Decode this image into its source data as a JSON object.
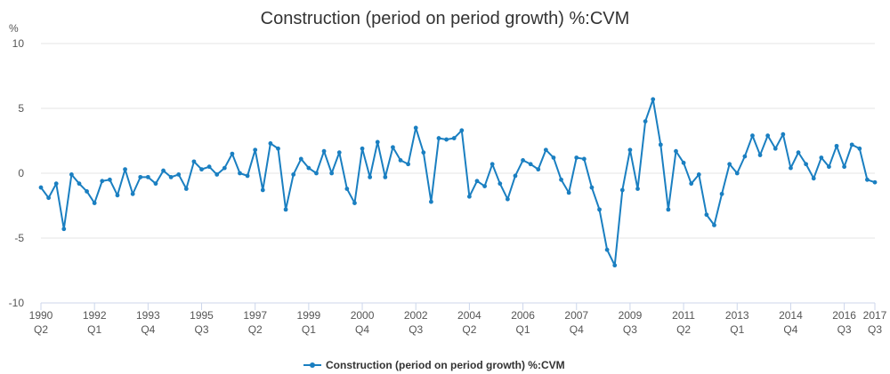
{
  "chart_data": {
    "type": "line",
    "title": "Construction (period on period growth) %:CVM",
    "ylabel": "%",
    "ylim": [
      -10,
      10
    ],
    "yticks": [
      10,
      5,
      0,
      -5,
      -10
    ],
    "grid": true,
    "legend_position": "bottom-center",
    "colors": {
      "series": "#1a7fc1"
    },
    "xtick_labels": [
      {
        "index": 0,
        "year": "1990",
        "quarter": "Q2"
      },
      {
        "index": 7,
        "year": "1992",
        "quarter": "Q1"
      },
      {
        "index": 14,
        "year": "1993",
        "quarter": "Q4"
      },
      {
        "index": 21,
        "year": "1995",
        "quarter": "Q3"
      },
      {
        "index": 28,
        "year": "1997",
        "quarter": "Q2"
      },
      {
        "index": 35,
        "year": "1999",
        "quarter": "Q1"
      },
      {
        "index": 42,
        "year": "2000",
        "quarter": "Q4"
      },
      {
        "index": 49,
        "year": "2002",
        "quarter": "Q3"
      },
      {
        "index": 56,
        "year": "2004",
        "quarter": "Q2"
      },
      {
        "index": 63,
        "year": "2006",
        "quarter": "Q1"
      },
      {
        "index": 70,
        "year": "2007",
        "quarter": "Q4"
      },
      {
        "index": 77,
        "year": "2009",
        "quarter": "Q3"
      },
      {
        "index": 84,
        "year": "2011",
        "quarter": "Q2"
      },
      {
        "index": 91,
        "year": "2013",
        "quarter": "Q1"
      },
      {
        "index": 98,
        "year": "2014",
        "quarter": "Q4"
      },
      {
        "index": 105,
        "year": "2016",
        "quarter": "Q3"
      },
      {
        "index": 109,
        "year": "2017",
        "quarter": "Q3"
      }
    ],
    "series": [
      {
        "name": "Construction (period on period growth) %:CVM",
        "start": "1990 Q2",
        "values": [
          -1.1,
          -1.9,
          -0.8,
          -4.3,
          -0.1,
          -0.8,
          -1.4,
          -2.3,
          -0.6,
          -0.5,
          -1.7,
          0.3,
          -1.6,
          -0.3,
          -0.3,
          -0.8,
          0.2,
          -0.3,
          -0.1,
          -1.2,
          0.9,
          0.3,
          0.5,
          -0.1,
          0.4,
          1.5,
          0.0,
          -0.2,
          1.8,
          -1.3,
          2.3,
          1.9,
          -2.8,
          -0.1,
          1.1,
          0.4,
          0.0,
          1.7,
          0.0,
          1.6,
          -1.2,
          -2.3,
          1.9,
          -0.3,
          2.4,
          -0.3,
          2.0,
          1.0,
          0.7,
          3.5,
          1.6,
          -2.2,
          2.7,
          2.6,
          2.7,
          3.3,
          -1.8,
          -0.6,
          -1.0,
          0.7,
          -0.8,
          -2.0,
          -0.2,
          1.0,
          0.7,
          0.3,
          1.8,
          1.2,
          -0.5,
          -1.5,
          1.2,
          1.1,
          -1.1,
          -2.8,
          -5.9,
          -7.1,
          -1.3,
          1.8,
          -1.2,
          4.0,
          5.7,
          2.2,
          -2.8,
          1.7,
          0.8,
          -0.8,
          -0.1,
          -3.2,
          -4.0,
          -1.6,
          0.7,
          0.0,
          1.3,
          2.9,
          1.4,
          2.9,
          1.9,
          3.0,
          0.4,
          1.6,
          0.7,
          -0.4,
          1.2,
          0.5,
          2.1,
          0.5,
          2.2,
          1.9,
          -0.5,
          -0.7
        ]
      }
    ]
  }
}
